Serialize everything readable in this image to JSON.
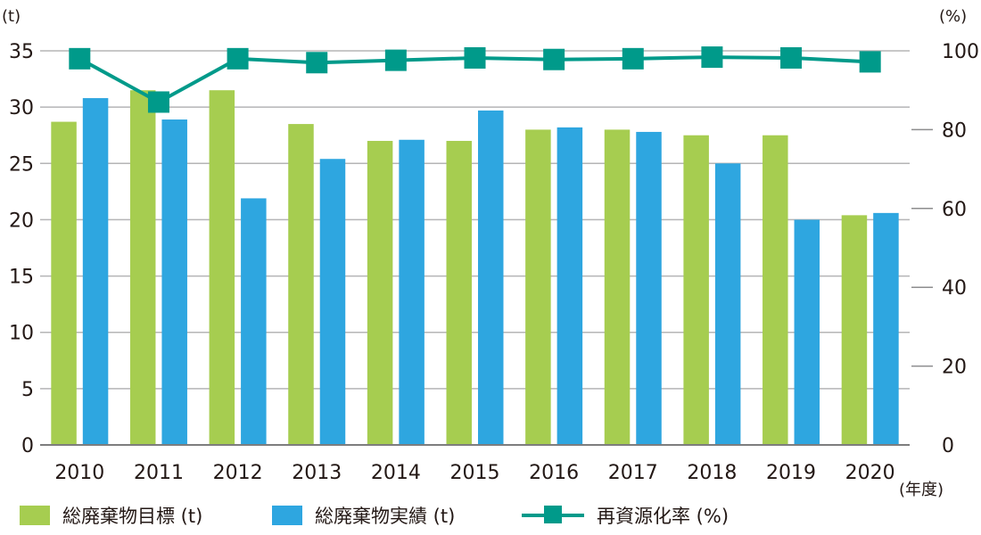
{
  "chart_data": {
    "type": "bar",
    "categories": [
      "2010",
      "2011",
      "2012",
      "2013",
      "2014",
      "2015",
      "2016",
      "2017",
      "2018",
      "2019",
      "2020"
    ],
    "series": [
      {
        "name": "総廃棄物目標 (t)",
        "axis": "left",
        "kind": "bar",
        "color": "#a6cd50",
        "values": [
          28.7,
          31.5,
          31.5,
          28.5,
          27.0,
          27.0,
          28.0,
          28.0,
          27.5,
          27.5,
          20.4
        ]
      },
      {
        "name": "総廃棄物実績 (t)",
        "axis": "left",
        "kind": "bar",
        "color": "#2ea6e0",
        "values": [
          30.8,
          28.9,
          21.9,
          25.4,
          27.1,
          29.7,
          28.2,
          27.8,
          25.0,
          20.0,
          20.6
        ]
      },
      {
        "name": "再資源化率 (%)",
        "axis": "right",
        "kind": "line",
        "color": "#009a8a",
        "values": [
          98.0,
          87.0,
          98.0,
          97.0,
          97.6,
          98.2,
          97.8,
          98.0,
          98.4,
          98.2,
          97.2
        ]
      }
    ],
    "y_left": {
      "unit": "(t)",
      "ticks": [
        "0",
        "5",
        "10",
        "15",
        "20",
        "25",
        "30",
        "35"
      ],
      "ylim": [
        0,
        35
      ]
    },
    "y_right": {
      "unit": "(%)",
      "ticks": [
        "0",
        "20",
        "40",
        "60",
        "80",
        "100"
      ],
      "ylim": [
        0,
        100
      ]
    },
    "x_unit": "(年度)",
    "grid": true,
    "legend_position": "bottom"
  }
}
